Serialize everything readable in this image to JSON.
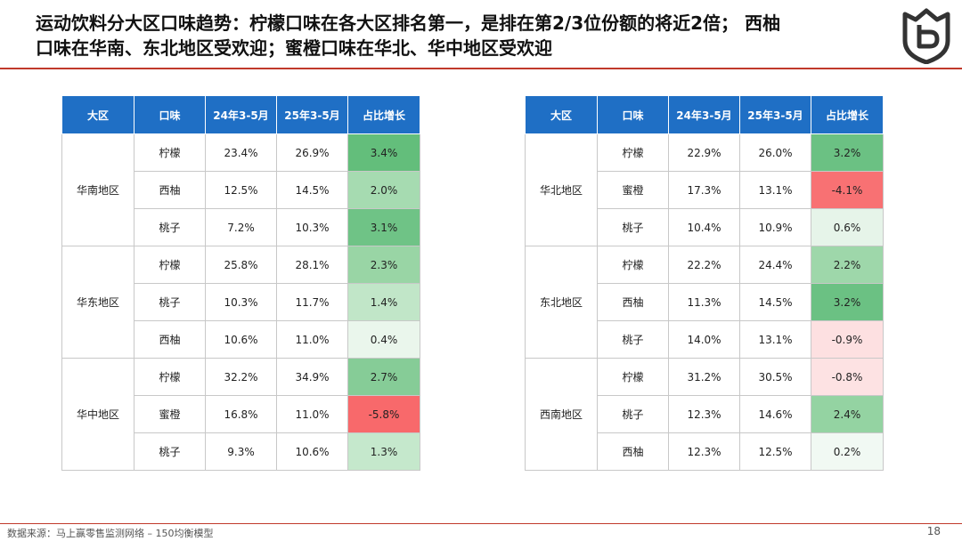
{
  "title": {
    "line1": "运动饮料分大区口味趋势：柠檬口味在各大区排名第一，是排在第2/3位份额的将近2倍； 西柚",
    "line2": "口味在华南、东北地区受欢迎；蜜橙口味在华北、华中地区受欢迎"
  },
  "headers": [
    "大区",
    "口味",
    "24年3-5月",
    "25年3-5月",
    "占比增长"
  ],
  "left_table": [
    {
      "region": "华南地区",
      "rows": [
        {
          "flavor": "柠檬",
          "y24": "23.4%",
          "y25": "26.9%",
          "growth": "3.4%",
          "color": "#63be7b"
        },
        {
          "flavor": "西柚",
          "y24": "12.5%",
          "y25": "14.5%",
          "growth": "2.0%",
          "color": "#a6dbb1"
        },
        {
          "flavor": "桃子",
          "y24": "7.2%",
          "y25": "10.3%",
          "growth": "3.1%",
          "color": "#6fc386"
        }
      ]
    },
    {
      "region": "华东地区",
      "rows": [
        {
          "flavor": "柠檬",
          "y24": "25.8%",
          "y25": "28.1%",
          "growth": "2.3%",
          "color": "#99d5a5"
        },
        {
          "flavor": "桃子",
          "y24": "10.3%",
          "y25": "11.7%",
          "growth": "1.4%",
          "color": "#c1e6c8"
        },
        {
          "flavor": "西柚",
          "y24": "10.6%",
          "y25": "11.0%",
          "growth": "0.4%",
          "color": "#eaf6ec"
        }
      ]
    },
    {
      "region": "华中地区",
      "rows": [
        {
          "flavor": "柠檬",
          "y24": "32.2%",
          "y25": "34.9%",
          "growth": "2.7%",
          "color": "#86cc97"
        },
        {
          "flavor": "蜜橙",
          "y24": "16.8%",
          "y25": "11.0%",
          "growth": "-5.8%",
          "color": "#f8696b"
        },
        {
          "flavor": "桃子",
          "y24": "9.3%",
          "y25": "10.6%",
          "growth": "1.3%",
          "color": "#c5e8cc"
        }
      ]
    }
  ],
  "right_table": [
    {
      "region": "华北地区",
      "rows": [
        {
          "flavor": "柠檬",
          "y24": "22.9%",
          "y25": "26.0%",
          "growth": "3.2%",
          "color": "#6bc183"
        },
        {
          "flavor": "蜜橙",
          "y24": "17.3%",
          "y25": "13.1%",
          "growth": "-4.1%",
          "color": "#f87173"
        },
        {
          "flavor": "桃子",
          "y24": "10.4%",
          "y25": "10.9%",
          "growth": "0.6%",
          "color": "#e6f4e9"
        }
      ]
    },
    {
      "region": "东北地区",
      "rows": [
        {
          "flavor": "柠檬",
          "y24": "22.2%",
          "y25": "24.4%",
          "growth": "2.2%",
          "color": "#9ed7aa"
        },
        {
          "flavor": "西柚",
          "y24": "11.3%",
          "y25": "14.5%",
          "growth": "3.2%",
          "color": "#6bc183"
        },
        {
          "flavor": "桃子",
          "y24": "14.0%",
          "y25": "13.1%",
          "growth": "-0.9%",
          "color": "#fde0e1"
        }
      ]
    },
    {
      "region": "西南地区",
      "rows": [
        {
          "flavor": "柠檬",
          "y24": "31.2%",
          "y25": "30.5%",
          "growth": "-0.8%",
          "color": "#fde2e3"
        },
        {
          "flavor": "桃子",
          "y24": "12.3%",
          "y25": "14.6%",
          "growth": "2.4%",
          "color": "#94d3a2"
        },
        {
          "flavor": "西柚",
          "y24": "12.3%",
          "y25": "12.5%",
          "growth": "0.2%",
          "color": "#f1f9f3"
        }
      ]
    }
  ],
  "footer": {
    "source": "数据来源：马上赢零售监测网络 – 150均衡模型",
    "page": "18"
  },
  "colors": {
    "header_blue": "#1f6fc5",
    "accent_red": "#c0392b"
  }
}
